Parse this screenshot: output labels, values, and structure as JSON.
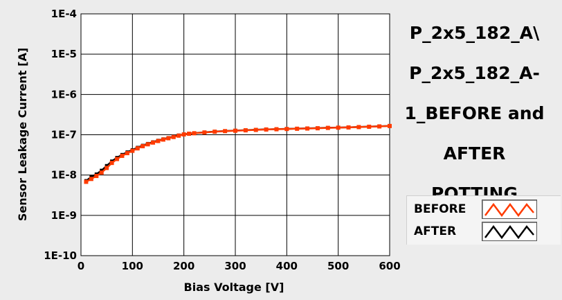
{
  "chart_data": {
    "type": "line",
    "title": "P_2x5_182_A\\ P_2x5_182_A-1_BEFORE and AFTER POTTING",
    "xlabel": "Bias Voltage [V]",
    "ylabel": "Sensor Leakage Current [A]",
    "xlim": [
      0,
      600
    ],
    "ylim": [
      1e-10,
      0.0001
    ],
    "yscale": "log",
    "grid": true,
    "legend_position": "bottom-right",
    "x_ticks": [
      "0",
      "100",
      "200",
      "300",
      "400",
      "500",
      "600"
    ],
    "y_ticks": [
      "1E-4",
      "1E-5",
      "1E-6",
      "1E-7",
      "1E-8",
      "1E-9",
      "1E-10"
    ],
    "series": [
      {
        "name": "BEFORE",
        "color": "#ff3b00",
        "x": [
          10,
          20,
          30,
          40,
          50,
          60,
          70,
          80,
          90,
          100,
          110,
          120,
          130,
          140,
          150,
          160,
          170,
          180,
          190,
          200,
          210,
          220,
          240,
          260,
          280,
          300,
          320,
          340,
          360,
          380,
          400,
          420,
          440,
          460,
          480,
          500,
          520,
          540,
          560,
          580,
          600
        ],
        "y": [
          6.8e-09,
          8e-09,
          9.5e-09,
          1.15e-08,
          1.5e-08,
          2e-08,
          2.5e-08,
          3e-08,
          3.5e-08,
          4e-08,
          4.6e-08,
          5.2e-08,
          5.8e-08,
          6.4e-08,
          7e-08,
          7.6e-08,
          8.2e-08,
          8.8e-08,
          9.5e-08,
          1.02e-07,
          1.06e-07,
          1.09e-07,
          1.14e-07,
          1.19e-07,
          1.23e-07,
          1.26e-07,
          1.29e-07,
          1.32e-07,
          1.35e-07,
          1.37e-07,
          1.39e-07,
          1.41e-07,
          1.43e-07,
          1.45e-07,
          1.48e-07,
          1.5e-07,
          1.52e-07,
          1.55e-07,
          1.58e-07,
          1.61e-07,
          1.65e-07
        ]
      },
      {
        "name": "AFTER",
        "color": "#000000",
        "x": [
          10,
          20,
          30,
          40,
          50,
          60,
          70,
          80,
          90,
          100,
          110,
          120,
          130,
          140,
          150,
          160,
          170,
          180,
          190,
          200,
          210,
          220,
          240,
          260,
          280,
          300,
          320,
          340,
          360,
          380,
          400,
          420,
          440,
          460,
          480,
          500,
          520,
          540,
          560,
          580,
          600
        ],
        "y": [
          7.2e-09,
          9e-09,
          1.05e-08,
          1.3e-08,
          1.7e-08,
          2.2e-08,
          2.7e-08,
          3.2e-08,
          3.7e-08,
          4.2e-08,
          4.8e-08,
          5.4e-08,
          6e-08,
          6.6e-08,
          7.2e-08,
          7.8e-08,
          8.4e-08,
          9e-08,
          9.7e-08,
          1.03e-07,
          1.07e-07,
          1.1e-07,
          1.15e-07,
          1.2e-07,
          1.24e-07,
          1.27e-07,
          1.3e-07,
          1.33e-07,
          1.36e-07,
          1.38e-07,
          1.4e-07,
          1.42e-07,
          1.44e-07,
          1.46e-07,
          1.49e-07,
          1.51e-07,
          1.53e-07,
          1.56e-07,
          1.59e-07,
          1.62e-07,
          1.66e-07
        ]
      }
    ]
  },
  "title_lines": [
    "P_2x5_182_A\\",
    "P_2x5_182_A-",
    "1_BEFORE and",
    "AFTER",
    "POTTING"
  ]
}
